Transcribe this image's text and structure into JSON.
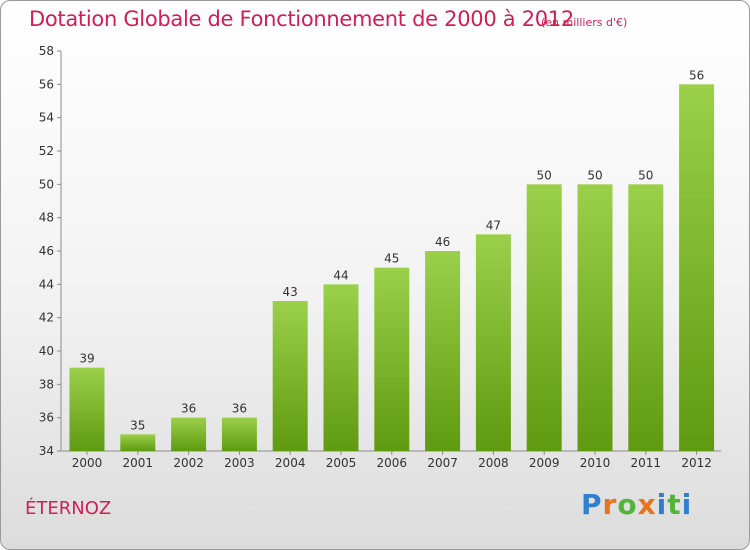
{
  "title": "Dotation Globale de Fonctionnement de 2000 à 2012",
  "unit": "(en milliers d'€)",
  "commune": "ÉTERNOZ",
  "brand": "Proxiti",
  "chart_data": {
    "type": "bar",
    "title": "Dotation Globale de Fonctionnement de 2000 à 2012",
    "subtitle": "(en milliers d'€)",
    "categories": [
      "2000",
      "2001",
      "2002",
      "2003",
      "2004",
      "2005",
      "2006",
      "2007",
      "2008",
      "2009",
      "2010",
      "2011",
      "2012"
    ],
    "values": [
      39,
      35,
      36,
      36,
      43,
      44,
      45,
      46,
      47,
      50,
      50,
      50,
      56
    ],
    "data_labels": [
      "39",
      "35",
      "36",
      "36",
      "43",
      "44",
      "45",
      "46",
      "47",
      "50",
      "50",
      "50",
      "56"
    ],
    "ylim": [
      34,
      58
    ],
    "yticks": [
      34,
      36,
      38,
      40,
      42,
      44,
      46,
      48,
      50,
      52,
      54,
      56,
      58
    ],
    "xlabel": "",
    "ylabel": "",
    "grid": false,
    "colors": {
      "bar_top": "#9bd04a",
      "bar_bottom": "#5f9a10",
      "axis": "#8c8c8c",
      "accent": "#d21e55"
    }
  }
}
